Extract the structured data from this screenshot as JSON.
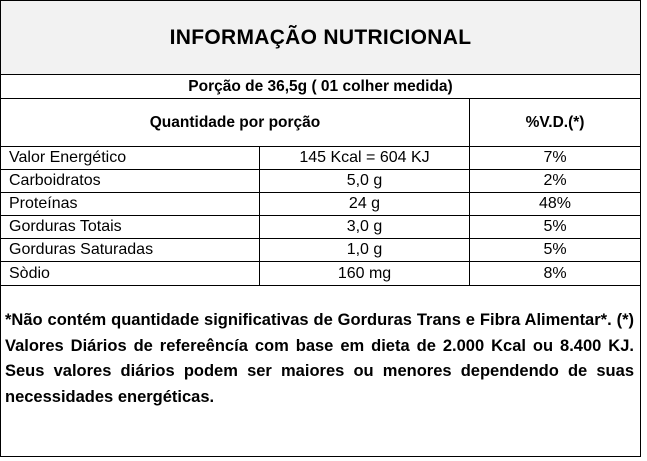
{
  "title": "INFORMAÇÃO NUTRICIONAL",
  "portion": "Porção de 36,5g ( 01 colher medida)",
  "header": {
    "quantity": "Quantidade por porção",
    "vd": "%V.D.(*)"
  },
  "rows": [
    {
      "name": "Valor Energético",
      "amount": "145 Kcal = 604 KJ",
      "vd": "7%"
    },
    {
      "name": "Carboidratos",
      "amount": "5,0 g",
      "vd": "2%"
    },
    {
      "name": "Proteínas",
      "amount": "24 g",
      "vd": "48%"
    },
    {
      "name": "Gorduras Totais",
      "amount": "3,0 g",
      "vd": "5%"
    },
    {
      "name": "Gorduras Saturadas",
      "amount": "1,0 g",
      "vd": "5%"
    },
    {
      "name": "Sòdio",
      "amount": "160 mg",
      "vd": "8%"
    }
  ],
  "footnote": "*Não contém quantidade significativas de Gorduras Trans e Fibra Alimentar*. (*) Valores Diários de refereêncía com base em dieta de 2.000 Kcal ou 8.400 KJ. Seus valores diários podem ser maiores ou menores dependendo de suas necessidades energéticas."
}
